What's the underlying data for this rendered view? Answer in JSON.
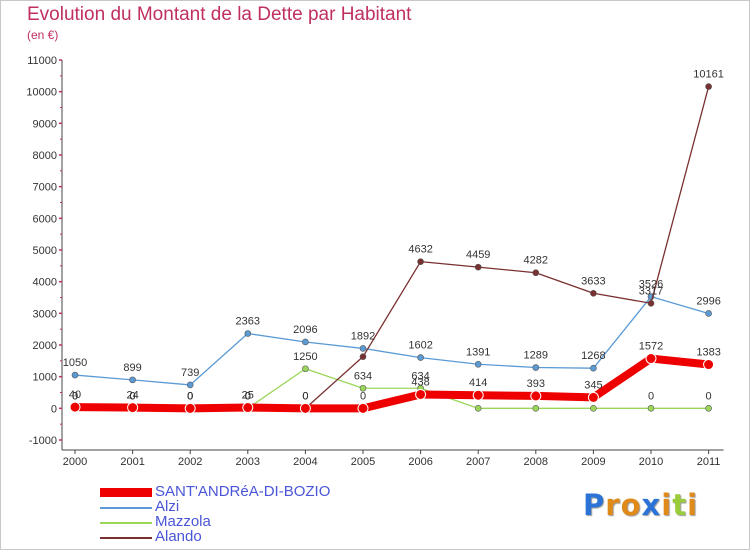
{
  "header": {
    "title": "Evolution du Montant de la Dette par Habitant",
    "subtitle": "(en €)"
  },
  "colors": {
    "title": "#c0305f",
    "axis": "#444444",
    "legend_text": "#4a55d8"
  },
  "chart_data": {
    "type": "line",
    "title": "Evolution du Montant de la Dette par Habitant",
    "subtitle": "(en €)",
    "xlabel": "",
    "ylabel": "",
    "x": [
      "2000",
      "2001",
      "2002",
      "2003",
      "2004",
      "2005",
      "2006",
      "2007",
      "2008",
      "2009",
      "2010",
      "2011"
    ],
    "ylim": [
      -1000,
      11000
    ],
    "yticks": [
      -1000,
      0,
      1000,
      2000,
      3000,
      4000,
      5000,
      6000,
      7000,
      8000,
      9000,
      10000,
      11000
    ],
    "grid": false,
    "legend_position": "bottom-left",
    "series": [
      {
        "name": "Alzi",
        "color": "#5b9bd5",
        "values": [
          1050,
          899,
          739,
          2363,
          2096,
          1892,
          1602,
          1391,
          1289,
          1268,
          3526,
          2996
        ],
        "labels": [
          "1050",
          "899",
          "739",
          "2363",
          "2096",
          "1892",
          "1602",
          "1391",
          "1289",
          "1268",
          "3526",
          "2996"
        ]
      },
      {
        "name": "Mazzola",
        "color": "#9bd65a",
        "values": [
          0,
          0,
          0,
          0,
          1250,
          634,
          634,
          0,
          0,
          0,
          0,
          0
        ],
        "labels": [
          "0",
          "0",
          "0",
          "0",
          "1250",
          "634",
          "634",
          "",
          "",
          "",
          "0",
          "0"
        ]
      },
      {
        "name": "Alando",
        "color": "#7a3030",
        "values": [
          0,
          0,
          0,
          0,
          0,
          1632,
          4632,
          4459,
          4282,
          3633,
          3317,
          10161
        ],
        "labels": [
          "0",
          "0",
          "0",
          "0",
          "0",
          "",
          "4632",
          "4459",
          "4282",
          "3633",
          "3317",
          "10161"
        ]
      },
      {
        "name": "SANT'ANDRéA-DI-BOZIO",
        "color": "#ee0000",
        "values": [
          40,
          24,
          0,
          25,
          0,
          0,
          438,
          414,
          393,
          345,
          1572,
          1383
        ],
        "labels": [
          "40",
          "24",
          "0",
          "25",
          "0",
          "0",
          "438",
          "414",
          "393",
          "345",
          "1572",
          "1383"
        ]
      }
    ]
  },
  "legend": [
    {
      "name": "SANT'ANDRéA-DI-BOZIO",
      "color": "#ee0000",
      "thick": true
    },
    {
      "name": "Alzi",
      "color": "#5b9bd5",
      "thick": false
    },
    {
      "name": "Mazzola",
      "color": "#9bd65a",
      "thick": false
    },
    {
      "name": "Alando",
      "color": "#7a3030",
      "thick": false
    }
  ],
  "logo": {
    "text": "Proxiti",
    "letters": [
      "P",
      "r",
      "o",
      "x",
      "i",
      "t",
      "i"
    ],
    "letter_colors": [
      "#2b73d6",
      "#e08a1a",
      "#e08a1a",
      "#2b73d6",
      "#e08a1a",
      "#9acb3a",
      "#e08a1a"
    ]
  }
}
